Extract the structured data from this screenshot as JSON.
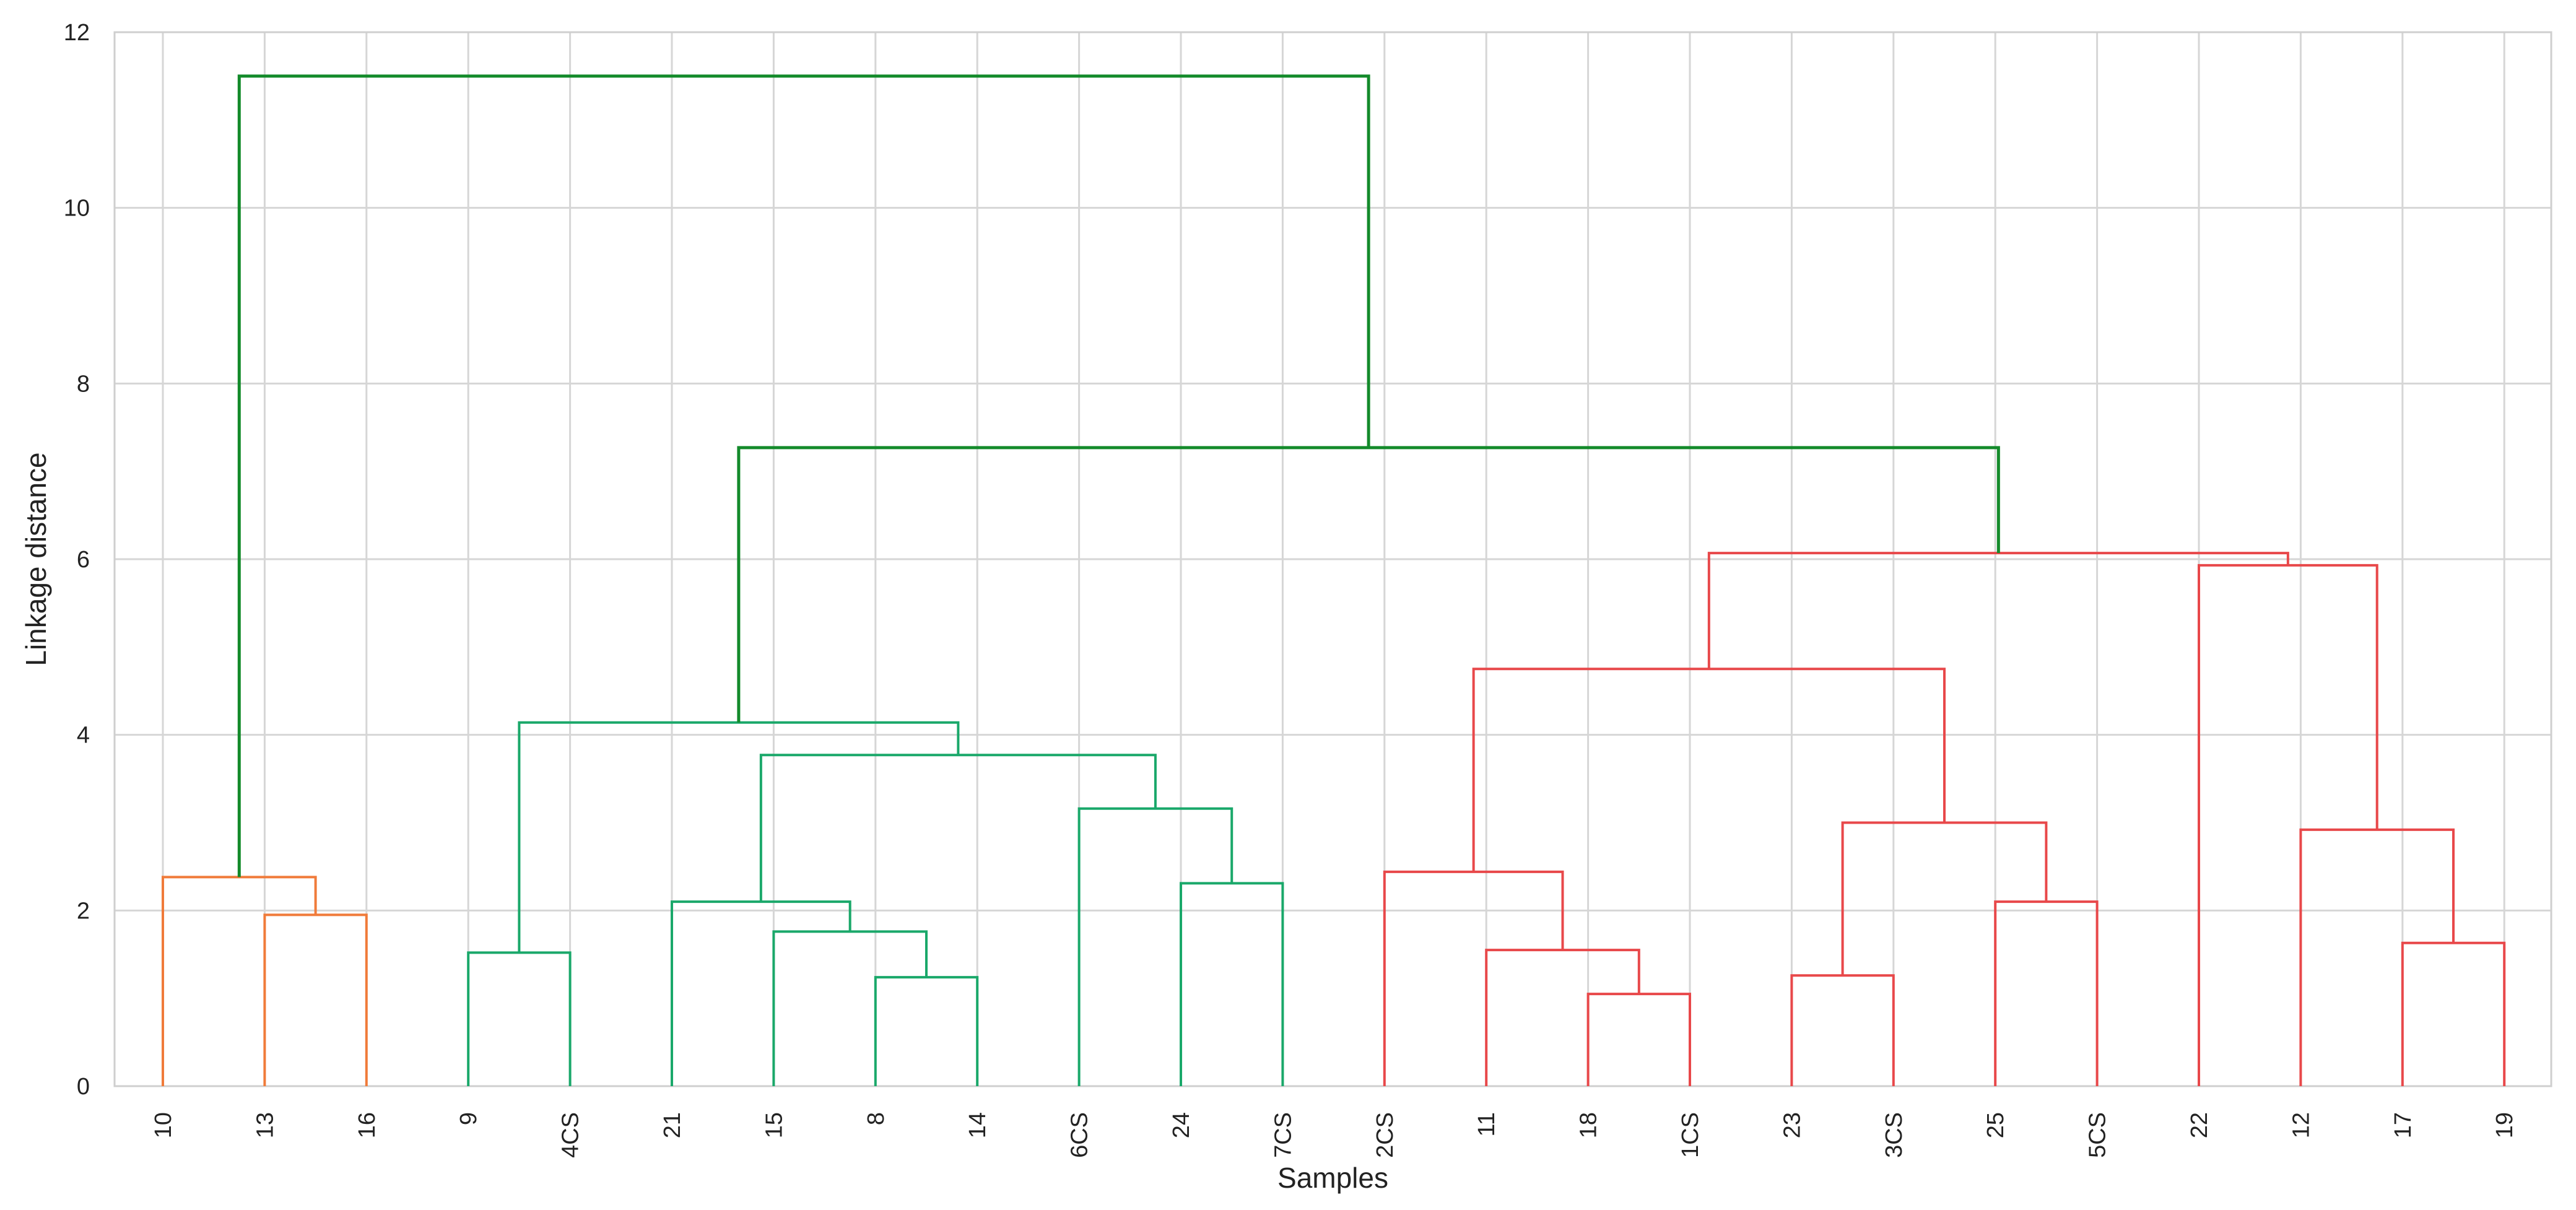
{
  "chart_data": {
    "type": "dendrogram",
    "xlabel": "Samples",
    "ylabel": "Linkage distance",
    "ylim": [
      0,
      12
    ],
    "yticks": [
      0,
      2,
      4,
      6,
      8,
      10,
      12
    ],
    "grid": true,
    "leaves": [
      "10",
      "13",
      "16",
      "9",
      "4CS",
      "21",
      "15",
      "8",
      "14",
      "6CS",
      "24",
      "7CS",
      "2CS",
      "11",
      "18",
      "1CS",
      "23",
      "3CS",
      "25",
      "5CS",
      "22",
      "12",
      "17",
      "19"
    ],
    "cluster_colors": {
      "orange": "#f07b3a",
      "green": "#1aa86a",
      "red": "#e8484a",
      "link": "#138a2a"
    },
    "merges": [
      {
        "left": "13",
        "right": "16",
        "height": 1.95,
        "color": "orange"
      },
      {
        "left": "10",
        "right": "13+16",
        "height": 2.38,
        "color": "orange"
      },
      {
        "left": "9",
        "right": "4CS",
        "height": 1.52,
        "color": "green"
      },
      {
        "left": "8",
        "right": "14",
        "height": 1.24,
        "color": "green"
      },
      {
        "left": "15",
        "right": "8+14",
        "height": 1.76,
        "color": "green"
      },
      {
        "left": "21",
        "right": "15+8+14",
        "height": 2.1,
        "color": "green"
      },
      {
        "left": "24",
        "right": "7CS",
        "height": 2.31,
        "color": "green"
      },
      {
        "left": "6CS",
        "right": "24+7CS",
        "height": 3.16,
        "color": "green"
      },
      {
        "left": "21..14",
        "right": "6CS..7CS",
        "height": 3.77,
        "color": "green"
      },
      {
        "left": "9+4CS",
        "right": "21..7CS",
        "height": 4.14,
        "color": "green"
      },
      {
        "left": "18",
        "right": "1CS",
        "height": 1.05,
        "color": "red"
      },
      {
        "left": "11",
        "right": "18+1CS",
        "height": 1.55,
        "color": "red"
      },
      {
        "left": "2CS",
        "right": "11..1CS",
        "height": 2.44,
        "color": "red"
      },
      {
        "left": "23",
        "right": "3CS",
        "height": 1.26,
        "color": "red"
      },
      {
        "left": "25",
        "right": "5CS",
        "height": 2.1,
        "color": "red"
      },
      {
        "left": "23+3CS",
        "right": "25+5CS",
        "height": 3.0,
        "color": "red"
      },
      {
        "left": "2CS..1CS",
        "right": "23..5CS",
        "height": 4.75,
        "color": "red"
      },
      {
        "left": "17",
        "right": "19",
        "height": 1.63,
        "color": "red"
      },
      {
        "left": "12",
        "right": "17+19",
        "height": 2.92,
        "color": "red"
      },
      {
        "left": "22",
        "right": "12..19",
        "height": 5.93,
        "color": "red"
      },
      {
        "left": "2CS..5CS",
        "right": "22..19",
        "height": 6.07,
        "color": "red"
      },
      {
        "left": "9..7CS",
        "right": "2CS..19",
        "height": 7.27,
        "color": "link"
      },
      {
        "left": "10..16",
        "right": "9..19",
        "height": 11.5,
        "color": "link"
      }
    ]
  }
}
